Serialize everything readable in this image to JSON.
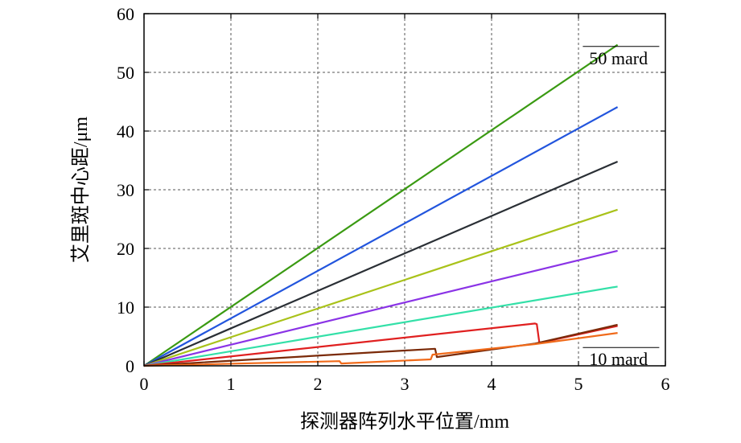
{
  "chart_data": {
    "type": "line",
    "xlabel": "探测器阵列水平位置/mm",
    "ylabel": "艾里斑中心距/μm",
    "xlim": [
      0,
      6
    ],
    "ylim": [
      0,
      60
    ],
    "xticks": [
      "0",
      "1",
      "2",
      "3",
      "4",
      "5",
      "6"
    ],
    "yticks": [
      "0",
      "10",
      "20",
      "30",
      "40",
      "50",
      "60"
    ],
    "grid": true,
    "annotations": [
      {
        "text": "50 mard",
        "x": 5.05,
        "y": 52.5
      },
      {
        "text": "10 mard",
        "x": 5.05,
        "y": 1.2
      }
    ],
    "series": [
      {
        "color": "#3a9a12",
        "x": [
          0,
          5.45
        ],
        "y": [
          0,
          54.7
        ]
      },
      {
        "color": "#2255dd",
        "x": [
          0,
          5.45
        ],
        "y": [
          0,
          44.1
        ]
      },
      {
        "color": "#2a2f35",
        "x": [
          0,
          5.45
        ],
        "y": [
          0,
          34.8
        ]
      },
      {
        "color": "#a9c21a",
        "x": [
          0,
          5.45
        ],
        "y": [
          0,
          26.6
        ]
      },
      {
        "color": "#8a33e6",
        "x": [
          0,
          5.45
        ],
        "y": [
          0,
          19.6
        ]
      },
      {
        "color": "#33e0a8",
        "x": [
          0,
          5.45
        ],
        "y": [
          0,
          13.5
        ]
      },
      {
        "color": "#e02020",
        "x": [
          0,
          4.5,
          4.52,
          4.55,
          5.45
        ],
        "y": [
          0,
          7.2,
          7.1,
          3.9,
          6.8
        ]
      },
      {
        "color": "#7a2a08",
        "x": [
          0,
          3.35,
          3.37,
          4.5,
          5.45
        ],
        "y": [
          0,
          2.9,
          1.5,
          3.8,
          7.0
        ]
      },
      {
        "color": "#f06a1a",
        "x": [
          0,
          2.25,
          2.27,
          3.3,
          3.32,
          4.5,
          5.45
        ],
        "y": [
          0,
          0.8,
          0.4,
          1.1,
          1.9,
          3.7,
          5.6
        ]
      }
    ]
  }
}
